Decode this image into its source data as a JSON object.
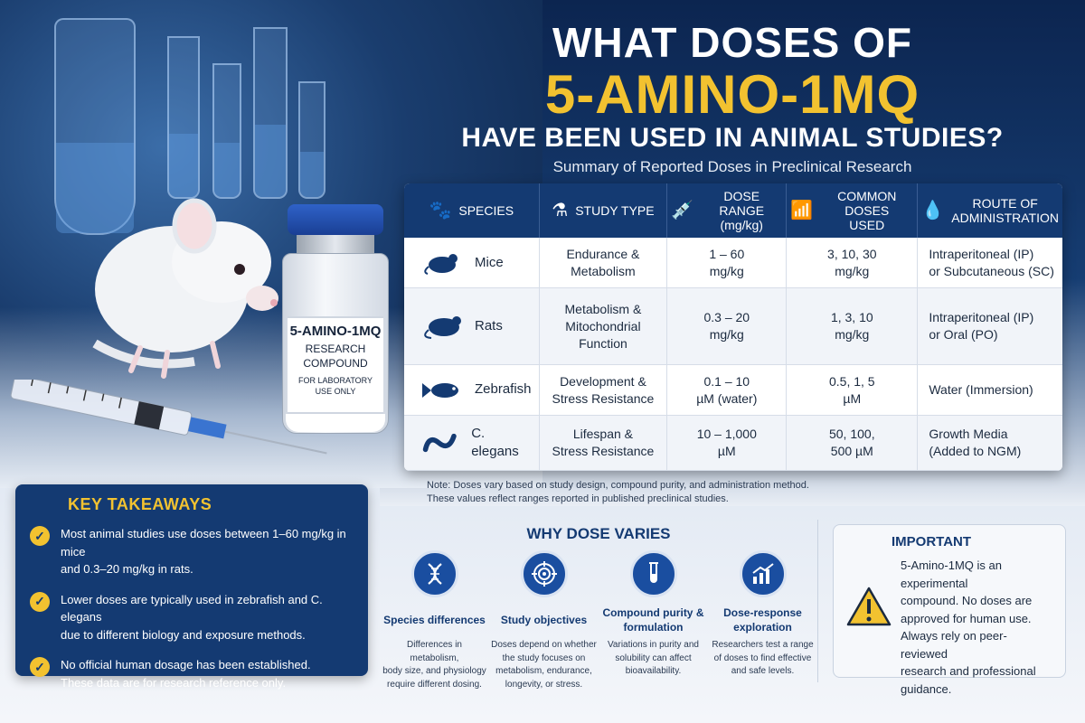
{
  "title": {
    "line1": "WHAT DOSES OF",
    "line2": "5-AMINO-1MQ",
    "line3": "HAVE BEEN USED IN ANIMAL STUDIES?",
    "subtitle": "Summary of Reported Doses in Preclinical Research"
  },
  "vial": {
    "name": "5-AMINO-1MQ",
    "line2": "RESEARCH",
    "line3": "COMPOUND",
    "line4": "FOR LABORATORY",
    "line5": "USE ONLY"
  },
  "table": {
    "headers": {
      "species": "SPECIES",
      "study_type": "STUDY TYPE",
      "dose_range": "DOSE RANGE",
      "dose_range_unit": "(mg/kg)",
      "common_doses": "COMMON DOSES",
      "common_doses_2": "USED",
      "route": "ROUTE OF",
      "route_2": "ADMINISTRATION"
    },
    "rows": [
      {
        "species": "Mice",
        "study_1": "Endurance &",
        "study_2": "Metabolism",
        "study_3": "",
        "range_1": "1 – 60",
        "range_2": "mg/kg",
        "common_1": "3, 10, 30",
        "common_2": "mg/kg",
        "route_1": "Intraperitoneal (IP)",
        "route_2": "or Subcutaneous (SC)"
      },
      {
        "species": "Rats",
        "study_1": "Metabolism &",
        "study_2": "Mitochondrial",
        "study_3": "Function",
        "range_1": "0.3 – 20",
        "range_2": "mg/kg",
        "common_1": "1, 3, 10",
        "common_2": "mg/kg",
        "route_1": "Intraperitoneal (IP)",
        "route_2": "or Oral (PO)"
      },
      {
        "species": "Zebrafish",
        "study_1": "Development &",
        "study_2": "Stress Resistance",
        "study_3": "",
        "range_1": "0.1 – 10",
        "range_2": "µM (water)",
        "common_1": "0.5, 1, 5",
        "common_2": "µM",
        "route_1": "Water (Immersion)",
        "route_2": ""
      },
      {
        "species": "C. elegans",
        "study_1": "Lifespan &",
        "study_2": "Stress Resistance",
        "study_3": "",
        "range_1": "10 – 1,000",
        "range_2": "µM",
        "common_1": "50, 100,",
        "common_2": "500 µM",
        "route_1": "Growth Media",
        "route_2": "(Added to NGM)"
      }
    ],
    "note_1": "Note: Doses vary based on study design, compound purity, and administration method.",
    "note_2": "These values reflect ranges reported in published preclinical studies."
  },
  "takeaways": {
    "heading": "KEY TAKEAWAYS",
    "items": [
      {
        "l1": "Most animal studies use doses between 1–60 mg/kg in mice",
        "l2": "and 0.3–20 mg/kg in rats."
      },
      {
        "l1": "Lower doses are typically used in zebrafish and C. elegans",
        "l2": "due to different biology and exposure methods."
      },
      {
        "l1": "No official human dosage has been established.",
        "l2": "These data are for research reference only."
      }
    ]
  },
  "why": {
    "heading": "WHY DOSE VARIES",
    "items": [
      {
        "icon": "dna-icon",
        "title": "Species differences",
        "d1": "Differences in metabolism,",
        "d2": "body size, and physiology",
        "d3": "require different dosing.",
        "d4": ""
      },
      {
        "icon": "target-icon",
        "title": "Study objectives",
        "d1": "Doses depend on whether",
        "d2": "the study focuses on",
        "d3": "metabolism, endurance,",
        "d4": "longevity, or stress."
      },
      {
        "icon": "test-tube-icon",
        "title": "Compound purity & formulation",
        "d1": "Variations in purity and",
        "d2": "solubility can affect",
        "d3": "bioavailability.",
        "d4": ""
      },
      {
        "icon": "chart-icon",
        "title": "Dose-response exploration",
        "d1": "Researchers test a range",
        "d2": "of doses to find effective",
        "d3": "and safe levels.",
        "d4": ""
      }
    ]
  },
  "important": {
    "heading": "IMPORTANT",
    "l1": "5-Amino-1MQ is an experimental",
    "l2": "compound. No doses are",
    "l3": "approved for human use.",
    "l4": "Always rely on peer-reviewed",
    "l5": "research and professional",
    "l6": "guidance."
  },
  "colors": {
    "navy": "#143a72",
    "gold": "#f2c230",
    "accent_blue": "#1a4ea0"
  }
}
